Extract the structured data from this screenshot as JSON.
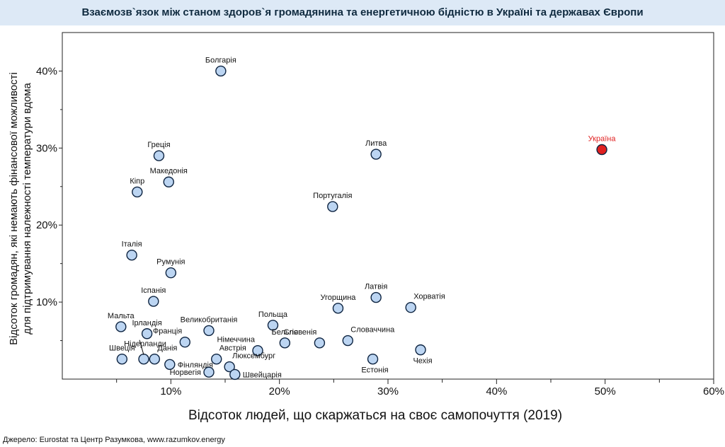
{
  "title": "Взаємозв`язок між станом здоров`я громадянина та енергетичною бідністю в Україні та державах Європи",
  "source": "Джерело: Eurostat та Центр Разумкова, www.razumkov.energy",
  "colors": {
    "point": "#bcd5f2",
    "point_stroke": "#0d2340",
    "highlight": "#e02020",
    "title_bg": "#dde9f6"
  },
  "chart_data": {
    "type": "scatter",
    "xlabel": "Відсоток людей, що скаржаться на своє самопочуття (2019)",
    "ylabel": [
      "Відсоток громадян, які немають фінансової можливості",
      "для підтримування належності температури вдома"
    ],
    "xlim": [
      0,
      60
    ],
    "ylim": [
      0,
      45
    ],
    "x_ticks": [
      10,
      20,
      30,
      40,
      50,
      60
    ],
    "x_tick_labels": [
      "10%",
      "20%",
      "30%",
      "40%",
      "50%",
      "60%"
    ],
    "y_ticks": [
      10,
      20,
      30,
      40
    ],
    "y_tick_labels": [
      "10%",
      "20%",
      "30%",
      "40%"
    ],
    "grid": false,
    "points": [
      {
        "label": "Болгарія",
        "x": 14.6,
        "y": 40.0,
        "pos": "above"
      },
      {
        "label": "Греція",
        "x": 8.9,
        "y": 29.0,
        "pos": "above"
      },
      {
        "label": "Литва",
        "x": 28.9,
        "y": 29.2,
        "pos": "above"
      },
      {
        "label": "Україна",
        "x": 49.7,
        "y": 29.8,
        "pos": "above",
        "highlight": true
      },
      {
        "label": "Македонія",
        "x": 9.8,
        "y": 25.6,
        "pos": "above"
      },
      {
        "label": "Кіпр",
        "x": 6.9,
        "y": 24.3,
        "pos": "above"
      },
      {
        "label": "Португалія",
        "x": 24.9,
        "y": 22.4,
        "pos": "above"
      },
      {
        "label": "Італія",
        "x": 6.4,
        "y": 16.1,
        "pos": "above"
      },
      {
        "label": "Румунія",
        "x": 10.0,
        "y": 13.8,
        "pos": "above"
      },
      {
        "label": "Іспанія",
        "x": 8.4,
        "y": 10.1,
        "pos": "above"
      },
      {
        "label": "Латвія",
        "x": 28.9,
        "y": 10.6,
        "pos": "above"
      },
      {
        "label": "Угорщина",
        "x": 25.4,
        "y": 9.2,
        "pos": "above"
      },
      {
        "label": "Хорватія",
        "x": 32.1,
        "y": 9.3,
        "pos": "above-right"
      },
      {
        "label": "Мальта",
        "x": 5.4,
        "y": 6.8,
        "pos": "above"
      },
      {
        "label": "Ірландія",
        "x": 7.8,
        "y": 5.9,
        "pos": "above"
      },
      {
        "label": "Польща",
        "x": 19.4,
        "y": 7.0,
        "pos": "above"
      },
      {
        "label": "Великобританія",
        "x": 13.5,
        "y": 6.3,
        "pos": "above"
      },
      {
        "label": "Франція",
        "x": 11.3,
        "y": 4.8,
        "pos": "above-left"
      },
      {
        "label": "Бельгія",
        "x": 20.5,
        "y": 4.7,
        "pos": "above"
      },
      {
        "label": "Словенія",
        "x": 23.7,
        "y": 4.7,
        "pos": "above-left"
      },
      {
        "label": "Словаччина",
        "x": 26.3,
        "y": 5.0,
        "pos": "above-right"
      },
      {
        "label": "Німеччина",
        "x": 18.0,
        "y": 3.7,
        "pos": "above-left"
      },
      {
        "label": "Швеція",
        "x": 5.5,
        "y": 2.6,
        "pos": "above"
      },
      {
        "label": "Нідерланди",
        "x": 7.5,
        "y": 2.6,
        "pos": "nl"
      },
      {
        "label": "Данія",
        "x": 8.5,
        "y": 2.6,
        "pos": "above-right"
      },
      {
        "label": "Австрія",
        "x": 14.2,
        "y": 2.6,
        "pos": "above-right"
      },
      {
        "label": "Фінляндія",
        "x": 9.9,
        "y": 1.9,
        "pos": "right"
      },
      {
        "label": "Люксембург",
        "x": 15.4,
        "y": 1.6,
        "pos": "above-right"
      },
      {
        "label": "Естонія",
        "x": 28.6,
        "y": 2.6,
        "pos": "below"
      },
      {
        "label": "Чехія",
        "x": 33.0,
        "y": 3.8,
        "pos": "below"
      },
      {
        "label": "Норвегія",
        "x": 13.5,
        "y": 0.9,
        "pos": "left"
      },
      {
        "label": "Швейцарія",
        "x": 15.9,
        "y": 0.6,
        "pos": "right"
      }
    ]
  }
}
